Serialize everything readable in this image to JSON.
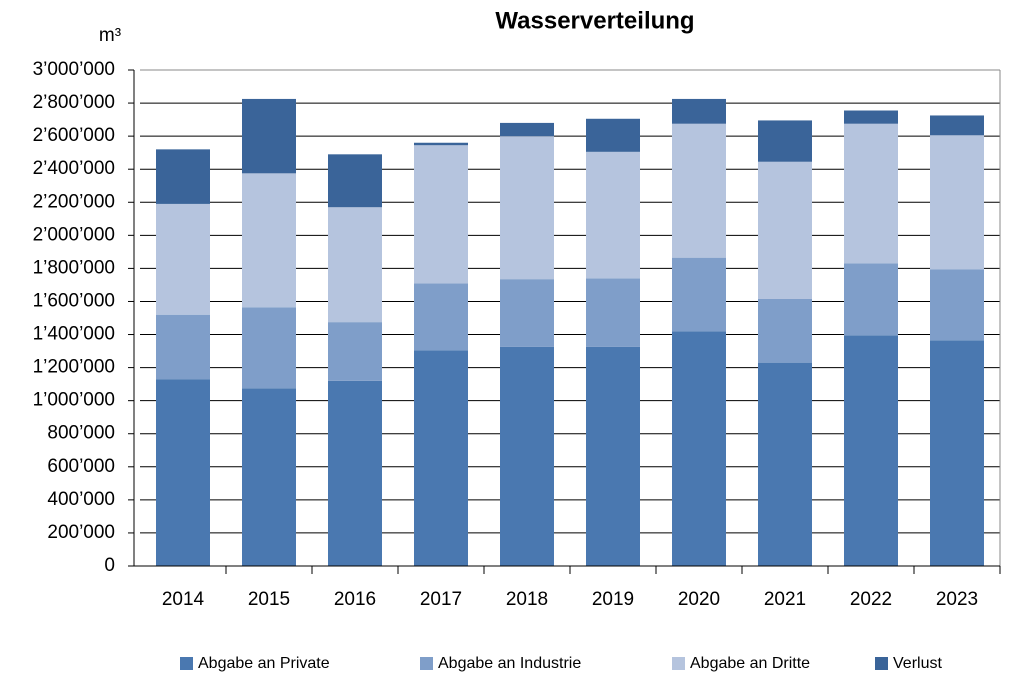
{
  "chart_data": {
    "type": "stacked_bar",
    "title": "Wasserverteilung",
    "ylabel": "m³",
    "categories": [
      "2014",
      "2015",
      "2016",
      "2017",
      "2018",
      "2019",
      "2020",
      "2021",
      "2022",
      "2023"
    ],
    "series": [
      {
        "name": "Abgabe an Private",
        "color": "#4a78b0",
        "values": [
          1130000,
          1075000,
          1120000,
          1305000,
          1325000,
          1325000,
          1420000,
          1230000,
          1395000,
          1365000
        ]
      },
      {
        "name": "Abgabe an Industrie",
        "color": "#7f9ec9",
        "values": [
          390000,
          490000,
          355000,
          405000,
          410000,
          415000,
          445000,
          385000,
          435000,
          430000
        ]
      },
      {
        "name": "Abgabe an Dritte",
        "color": "#b5c4de",
        "values": [
          670000,
          810000,
          695000,
          835000,
          865000,
          765000,
          810000,
          830000,
          845000,
          810000
        ]
      },
      {
        "name": "Verlust",
        "color": "#3a6499",
        "values": [
          330000,
          450000,
          320000,
          15000,
          80000,
          200000,
          150000,
          250000,
          80000,
          120000
        ]
      }
    ],
    "ylim": [
      0,
      3000000
    ],
    "yticks": [
      0,
      {
        "value": 200000,
        "label": "200’000"
      },
      {
        "value": 400000,
        "label": "400’000"
      },
      {
        "value": 600000,
        "label": "600’000"
      },
      {
        "value": 800000,
        "label": "800’000"
      },
      {
        "value": 1000000,
        "label": "1’000’000"
      },
      {
        "value": 1200000,
        "label": "1’200’000"
      },
      {
        "value": 1400000,
        "label": "1’400’000"
      },
      {
        "value": 1600000,
        "label": "1’600’000"
      },
      {
        "value": 1800000,
        "label": "1’800’000"
      },
      {
        "value": 2000000,
        "label": "2’000’000"
      },
      {
        "value": 2200000,
        "label": "2’200’000"
      },
      {
        "value": 2400000,
        "label": "2’400’000"
      },
      {
        "value": 2600000,
        "label": "2’600’000"
      },
      {
        "value": 2800000,
        "label": "2’800’000"
      },
      {
        "value": 3000000,
        "label": "3’000’000"
      }
    ],
    "grid": true,
    "legend": "bottom"
  }
}
